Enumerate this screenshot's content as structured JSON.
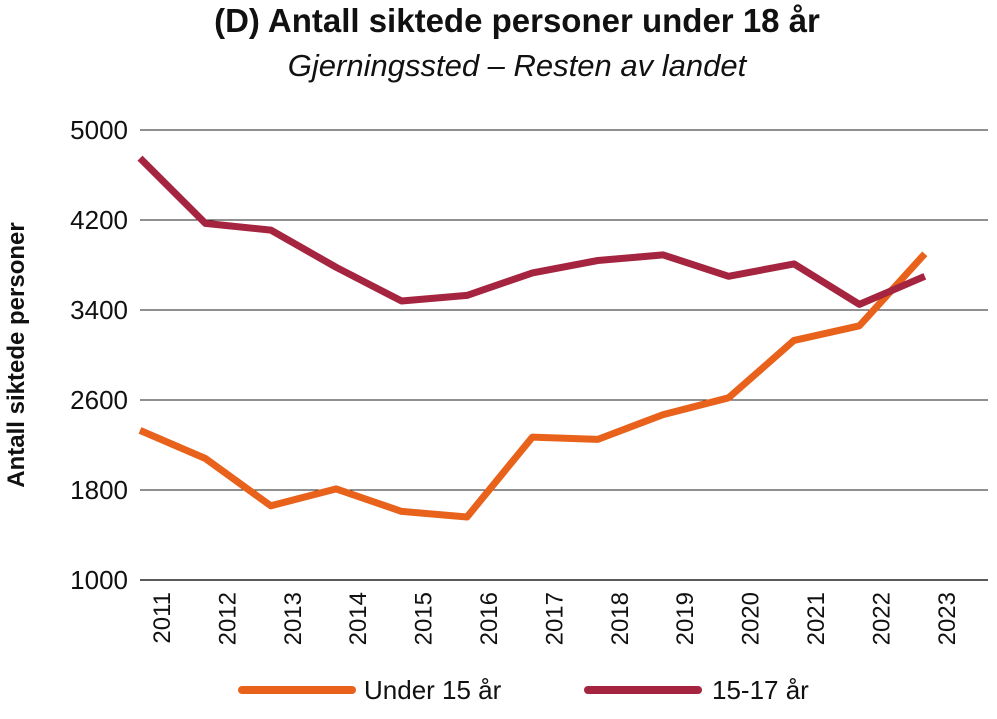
{
  "chart_data": {
    "type": "line",
    "title": "(D) Antall siktede personer under 18 år",
    "subtitle": "Gjerningssted – Resten av landet",
    "xlabel": "",
    "ylabel": "Antall siktede personer",
    "ylim": [
      1000,
      5000
    ],
    "yticks": [
      "5000",
      "4200",
      "3400",
      "2600",
      "1800",
      "1000"
    ],
    "categories": [
      "2011",
      "2012",
      "2013",
      "2014",
      "2015",
      "2016",
      "2017",
      "2018",
      "2019",
      "2020",
      "2021",
      "2022",
      "2023"
    ],
    "grid": true,
    "legend_position": "bottom",
    "series": [
      {
        "name": "Under 15 år",
        "color": "#e8621c",
        "values": [
          2330,
          2080,
          1660,
          1810,
          1610,
          1560,
          2270,
          2250,
          2470,
          2620,
          3130,
          3260,
          3900
        ]
      },
      {
        "name": "15-17 år",
        "color": "#a5243f",
        "values": [
          4750,
          4170,
          4110,
          3780,
          3480,
          3530,
          3730,
          3840,
          3890,
          3700,
          3810,
          3450,
          3700
        ]
      }
    ]
  }
}
